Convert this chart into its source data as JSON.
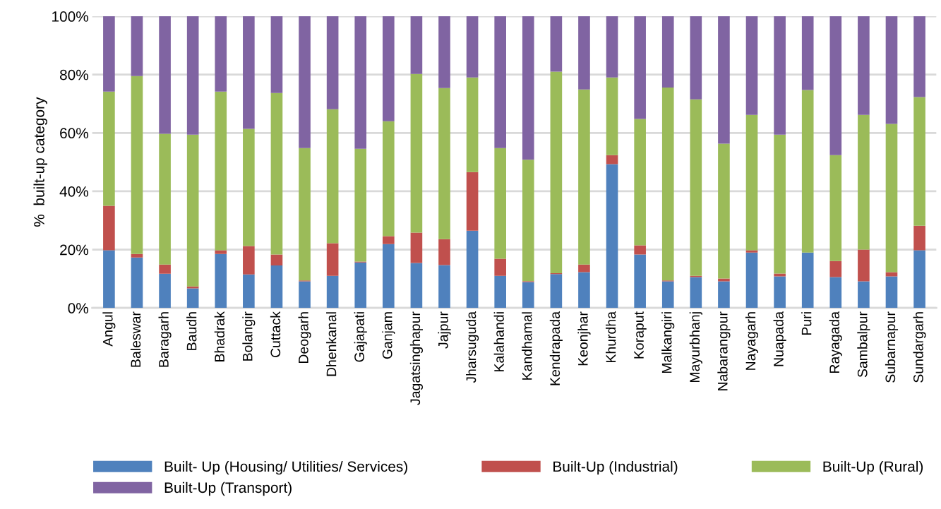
{
  "chart_data": {
    "type": "bar",
    "stacked": true,
    "ylabel": "%  built-up category",
    "categories": [
      "Angul",
      "Baleswar",
      "Baragarh",
      "Baudh",
      "Bhadrak",
      "Bolangir",
      "Cuttack",
      "Deogarh",
      "Dhenkanal",
      "Gajapati",
      "Ganjam",
      "Jagatsinghapur",
      "Jajpur",
      "Jharsuguda",
      "Kalahandi",
      "Kandhamal",
      "Kendrapada",
      "Keonjhar",
      "Khurdha",
      "Koraput",
      "Malkangiri",
      "Mayurbhanj",
      "Nabarangpur",
      "Nayagarh",
      "Nuapada",
      "Puri",
      "Rayagada",
      "Sambalpur",
      "Subarnapur",
      "Sundargarh"
    ],
    "series": [
      {
        "name": "Built- Up (Housing/ Utilities/ Services)",
        "color": "#4f81bd",
        "values": [
          19.8,
          17.3,
          11.7,
          6.7,
          18.5,
          11.5,
          14.6,
          9.1,
          11.0,
          15.6,
          21.9,
          15.4,
          14.7,
          26.5,
          11.0,
          8.9,
          11.6,
          12.3,
          49.3,
          18.3,
          9.1,
          10.6,
          9.1,
          19.0,
          10.8,
          19.0,
          10.6,
          9.1,
          10.8,
          19.8
        ]
      },
      {
        "name": "Built-Up (Industrial)",
        "color": "#c0504d",
        "values": [
          15.2,
          1.2,
          3.2,
          0.7,
          1.3,
          9.7,
          3.7,
          0.3,
          11.2,
          0.3,
          2.7,
          10.4,
          8.9,
          20.1,
          5.9,
          0.3,
          0.3,
          2.6,
          3.1,
          3.2,
          0.3,
          0.4,
          1.0,
          0.8,
          1.0,
          0,
          5.5,
          10.9,
          1.5,
          8.4
        ]
      },
      {
        "name": "Built-Up (Rural)",
        "color": "#9bbb59",
        "values": [
          39.2,
          61.0,
          44.8,
          52.0,
          54.4,
          40.2,
          55.4,
          45.4,
          45.9,
          38.7,
          39.4,
          54.4,
          51.8,
          32.4,
          37.9,
          41.6,
          69.1,
          60.0,
          26.6,
          43.3,
          66.2,
          60.5,
          46.2,
          46.4,
          47.6,
          55.7,
          36.3,
          46.2,
          50.8,
          44.1
        ]
      },
      {
        "name": "Built-Up (Transport)",
        "color": "#8064a2",
        "values": [
          25.8,
          20.5,
          40.3,
          40.6,
          25.8,
          38.6,
          26.3,
          45.2,
          31.9,
          45.4,
          36.0,
          19.8,
          24.6,
          21.0,
          45.2,
          49.3,
          19.0,
          25.1,
          21.0,
          35.2,
          24.4,
          28.5,
          43.7,
          33.8,
          40.6,
          25.3,
          47.6,
          33.8,
          36.9,
          27.7
        ]
      }
    ],
    "ylim": [
      0,
      100
    ],
    "yticks": [
      {
        "value": 0,
        "label": "0%"
      },
      {
        "value": 20,
        "label": "20%"
      },
      {
        "value": 40,
        "label": "40%"
      },
      {
        "value": 60,
        "label": "60%"
      },
      {
        "value": 80,
        "label": "80%"
      },
      {
        "value": 100,
        "label": "100%"
      }
    ],
    "grid": "y",
    "legend": "bottom"
  }
}
